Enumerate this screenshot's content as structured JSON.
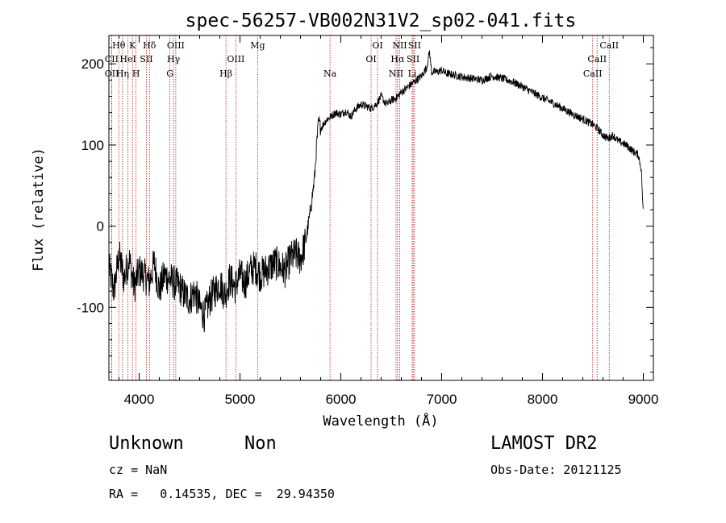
{
  "chart_data": {
    "type": "line",
    "title": "spec-56257-VB002N31V2_sp02-041.fits",
    "xlabel": "Wavelength (Å)",
    "ylabel": "Flux (relative)",
    "xlim": [
      3700,
      9100
    ],
    "ylim": [
      -190,
      235
    ],
    "xticks": [
      4000,
      5000,
      6000,
      7000,
      8000,
      9000
    ],
    "yticks": [
      -100,
      0,
      100,
      200
    ],
    "grid": false,
    "series": [
      {
        "color": "#000000",
        "x": [
          3700,
          3750,
          3800,
          3850,
          3900,
          3950,
          4000,
          4050,
          4100,
          4150,
          4200,
          4250,
          4300,
          4350,
          4400,
          4450,
          4500,
          4550,
          4600,
          4650,
          4700,
          4750,
          4800,
          4850,
          4900,
          4950,
          5000,
          5050,
          5100,
          5150,
          5200,
          5250,
          5300,
          5350,
          5400,
          5450,
          5500,
          5550,
          5600,
          5650,
          5700,
          5720,
          5740,
          5760,
          5780,
          5800,
          5850,
          5900,
          5950,
          6000,
          6050,
          6100,
          6150,
          6200,
          6250,
          6300,
          6350,
          6400,
          6450,
          6500,
          6550,
          6600,
          6650,
          6700,
          6750,
          6800,
          6850,
          6880,
          6900,
          6950,
          7000,
          7050,
          7100,
          7200,
          7300,
          7400,
          7500,
          7600,
          7700,
          7800,
          7900,
          8000,
          8100,
          8200,
          8300,
          8400,
          8500,
          8550,
          8600,
          8650,
          8700,
          8750,
          8800,
          8850,
          8900,
          8950,
          8980,
          9000
        ],
        "y": [
          -50,
          -80,
          -35,
          -65,
          -40,
          -75,
          -55,
          -60,
          -70,
          -45,
          -80,
          -60,
          -65,
          -70,
          -75,
          -85,
          -90,
          -80,
          -100,
          -110,
          -90,
          -80,
          -70,
          -85,
          -65,
          -75,
          -60,
          -70,
          -55,
          -50,
          -60,
          -55,
          -50,
          -45,
          -50,
          -55,
          -40,
          -35,
          -40,
          -20,
          20,
          40,
          60,
          100,
          130,
          120,
          130,
          135,
          140,
          138,
          142,
          135,
          145,
          150,
          148,
          145,
          150,
          160,
          150,
          155,
          158,
          165,
          170,
          175,
          180,
          185,
          195,
          215,
          190,
          190,
          192,
          188,
          187,
          184,
          182,
          180,
          185,
          182,
          178,
          172,
          165,
          158,
          152,
          145,
          138,
          132,
          125,
          120,
          112,
          108,
          112,
          105,
          102,
          98,
          92,
          88,
          70,
          12
        ]
      }
    ],
    "annotations": [
      {
        "label": "Hθ",
        "x": 3798,
        "row": 0
      },
      {
        "label": "K",
        "x": 3934,
        "row": 0
      },
      {
        "label": "Hδ",
        "x": 4102,
        "row": 0
      },
      {
        "label": "OIII",
        "x": 4363,
        "row": 0
      },
      {
        "label": "Mg",
        "x": 5175,
        "row": 0
      },
      {
        "label": "OI",
        "x": 6364,
        "row": 0
      },
      {
        "label": "NII",
        "x": 6584,
        "row": 0
      },
      {
        "label": "SII",
        "x": 6731,
        "row": 0
      },
      {
        "label": "CaII",
        "x": 8662,
        "row": 0
      },
      {
        "label": "CII",
        "x": 3727,
        "row": 1
      },
      {
        "label": "HeI",
        "x": 3889,
        "row": 1
      },
      {
        "label": "SII",
        "x": 4072,
        "row": 1
      },
      {
        "label": "Hγ",
        "x": 4341,
        "row": 1
      },
      {
        "label": "OIII",
        "x": 4959,
        "row": 1
      },
      {
        "label": "OI",
        "x": 6300,
        "row": 1
      },
      {
        "label": "Hα",
        "x": 6563,
        "row": 1
      },
      {
        "label": "SII",
        "x": 6717,
        "row": 1
      },
      {
        "label": "CaII",
        "x": 8542,
        "row": 1
      },
      {
        "label": "OII",
        "x": 3729,
        "row": 2
      },
      {
        "label": "Hη",
        "x": 3835,
        "row": 2
      },
      {
        "label": "H",
        "x": 3969,
        "row": 2
      },
      {
        "label": "G",
        "x": 4305,
        "row": 2
      },
      {
        "label": "Hβ",
        "x": 4861,
        "row": 2
      },
      {
        "label": "Na",
        "x": 5893,
        "row": 2
      },
      {
        "label": "NII",
        "x": 6548,
        "row": 2
      },
      {
        "label": "Li",
        "x": 6708,
        "row": 2
      },
      {
        "label": "CaII",
        "x": 8498,
        "row": 2
      }
    ]
  },
  "info": {
    "class_label": "Unknown",
    "subclass_label": "Non",
    "survey": "LAMOST DR2",
    "cz": "cz = NaN",
    "obs_date": "Obs-Date: 20121125",
    "coords": "RA =   0.14535, DEC =  29.94350"
  }
}
